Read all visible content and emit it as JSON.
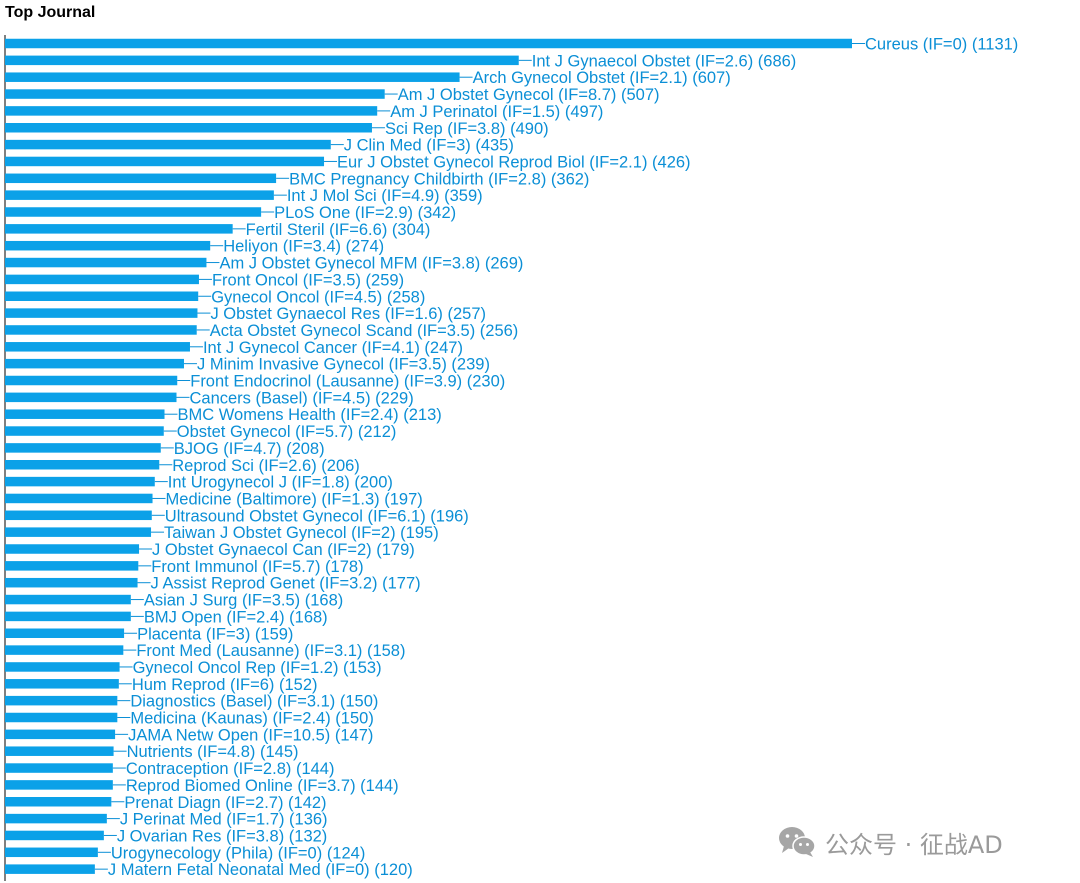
{
  "header": {
    "title": "Top Journal"
  },
  "colors": {
    "bar": "#0ba1e8",
    "label": "#0b8fd6",
    "axis": "#000000"
  },
  "watermark": {
    "text": "公众号 · 征战AD",
    "icon": "wechat-icon"
  },
  "chart_data": {
    "type": "bar",
    "orientation": "horizontal",
    "title": "Top Journal",
    "grid": false,
    "xlim": [
      0,
      1131
    ],
    "categories": [
      "Cureus (IF=0)",
      "Int J Gynaecol Obstet (IF=2.6)",
      "Arch Gynecol Obstet (IF=2.1)",
      "Am J Obstet Gynecol (IF=8.7)",
      "Am J Perinatol (IF=1.5)",
      "Sci Rep (IF=3.8)",
      "J Clin Med (IF=3)",
      "Eur J Obstet Gynecol Reprod Biol (IF=2.1)",
      "BMC Pregnancy Childbirth (IF=2.8)",
      "Int J Mol Sci (IF=4.9)",
      "PLoS One (IF=2.9)",
      "Fertil Steril (IF=6.6)",
      "Heliyon (IF=3.4)",
      "Am J Obstet Gynecol MFM (IF=3.8)",
      "Front Oncol (IF=3.5)",
      "Gynecol Oncol (IF=4.5)",
      "J Obstet Gynaecol Res (IF=1.6)",
      "Acta Obstet Gynecol Scand (IF=3.5)",
      "Int J Gynecol Cancer (IF=4.1)",
      "J Minim Invasive Gynecol (IF=3.5)",
      "Front Endocrinol (Lausanne) (IF=3.9)",
      "Cancers (Basel) (IF=4.5)",
      "BMC Womens Health (IF=2.4)",
      "Obstet Gynecol (IF=5.7)",
      "BJOG (IF=4.7)",
      "Reprod Sci (IF=2.6)",
      "Int Urogynecol J (IF=1.8)",
      "Medicine (Baltimore) (IF=1.3)",
      "Ultrasound Obstet Gynecol (IF=6.1)",
      "Taiwan J Obstet Gynecol (IF=2)",
      "J Obstet Gynaecol Can (IF=2)",
      "Front Immunol (IF=5.7)",
      "J Assist Reprod Genet (IF=3.2)",
      "Asian J Surg (IF=3.5)",
      "BMJ Open (IF=2.4)",
      "Placenta (IF=3)",
      "Front Med (Lausanne) (IF=3.1)",
      "Gynecol Oncol Rep (IF=1.2)",
      "Hum Reprod (IF=6)",
      "Diagnostics (Basel) (IF=3.1)",
      "Medicina (Kaunas) (IF=2.4)",
      "JAMA Netw Open (IF=10.5)",
      "Nutrients (IF=4.8)",
      "Contraception (IF=2.8)",
      "Reprod Biomed Online (IF=3.7)",
      "Prenat Diagn (IF=2.7)",
      "J Perinat Med (IF=1.7)",
      "J Ovarian Res (IF=3.8)",
      "Urogynecology (Phila) (IF=0)",
      "J Matern Fetal Neonatal Med (IF=0)"
    ],
    "values": [
      1131,
      686,
      607,
      507,
      497,
      490,
      435,
      426,
      362,
      359,
      342,
      304,
      274,
      269,
      259,
      258,
      257,
      256,
      247,
      239,
      230,
      229,
      213,
      212,
      208,
      206,
      200,
      197,
      196,
      195,
      179,
      178,
      177,
      168,
      168,
      159,
      158,
      153,
      152,
      150,
      150,
      147,
      145,
      144,
      144,
      142,
      136,
      132,
      124,
      120
    ]
  }
}
